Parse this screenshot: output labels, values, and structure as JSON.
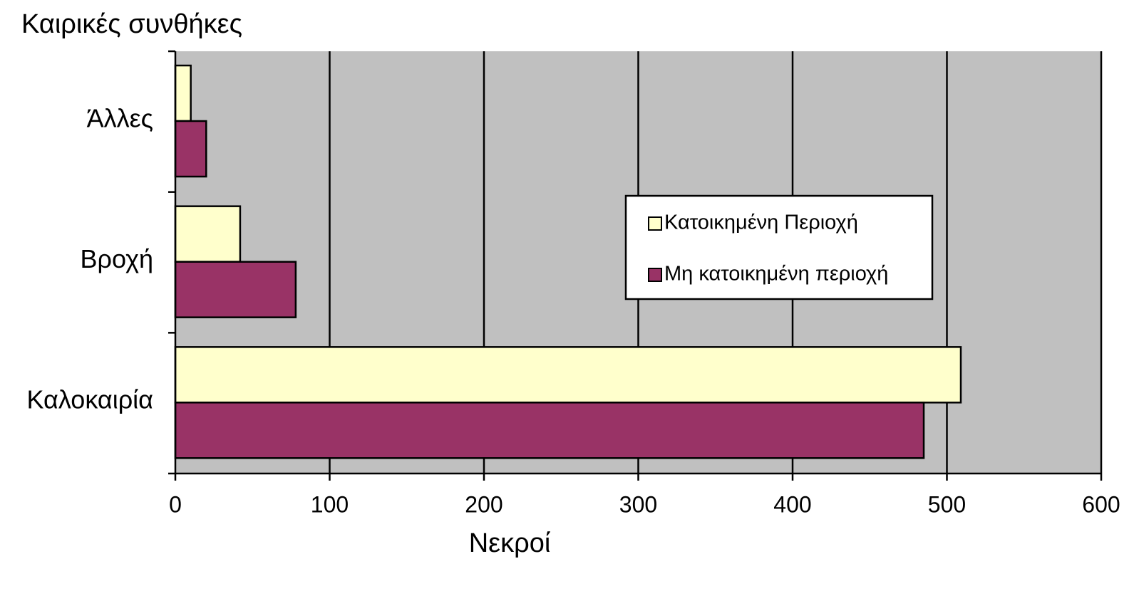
{
  "chart_data": {
    "type": "hbar",
    "y_axis_label": "Καιρικές συνθήκες",
    "x_axis_label": "Νεκροί",
    "categories": [
      "Άλλες",
      "Βροχή",
      "Καλοκαιρία"
    ],
    "series": [
      {
        "name": "Κατοικημένη Περιοχή",
        "color": "#ffffcc",
        "values": [
          10,
          42,
          509
        ]
      },
      {
        "name": "Μη κατοικημένη περιοχή",
        "color": "#993366",
        "values": [
          20,
          78,
          485
        ]
      }
    ],
    "xlim": [
      0,
      600
    ],
    "xticks": [
      0,
      100,
      200,
      300,
      400,
      500,
      600
    ],
    "grid": true,
    "legend": "right"
  }
}
